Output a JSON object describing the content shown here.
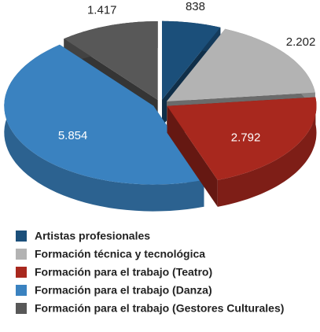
{
  "chart_data": {
    "type": "pie",
    "categories": [
      "Artistas profesionales",
      "Formación técnica y tecnológica",
      "Formación para el trabajo (Teatro)",
      "Formación para el trabajo (Danza)",
      "Formación para el trabajo (Gestores Culturales)"
    ],
    "values": [
      838,
      2202,
      2792,
      5854,
      1417
    ],
    "value_labels": [
      "838",
      "2.202",
      "2.792",
      "5.854",
      "1.417"
    ],
    "colors": [
      "#1b4f7a",
      "#b3b3b3",
      "#a8281e",
      "#3a82c0",
      "#585858"
    ],
    "legend": "bottom"
  }
}
